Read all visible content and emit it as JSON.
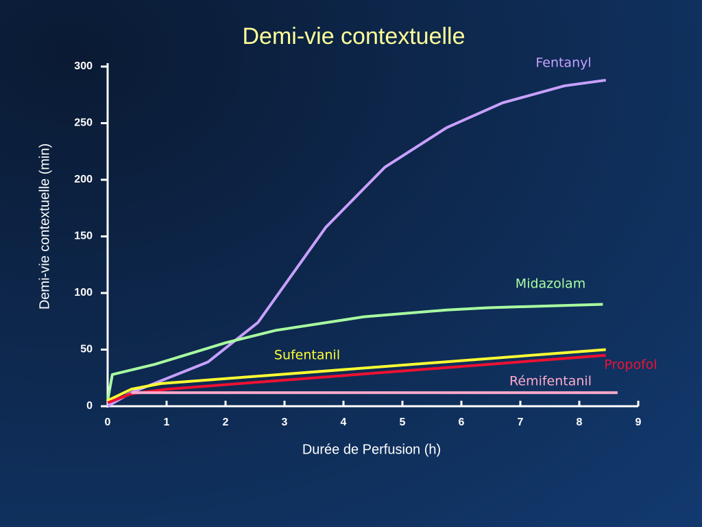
{
  "chart_data": {
    "type": "line",
    "title": "Demi-vie contextuelle",
    "x_label": "Durée de Perfusion (h)",
    "y_label": "Demi-vie contextuelle (min)",
    "xlim": [
      0,
      9
    ],
    "xticks": [
      0,
      1,
      2,
      3,
      4,
      5,
      6,
      7,
      8,
      9
    ],
    "ylim": [
      0,
      300
    ],
    "yticks": [
      0,
      50,
      100,
      150,
      200,
      250,
      300
    ],
    "series": [
      {
        "name": "Fentanyl",
        "color": "#c8a0ff",
        "x": [
          0,
          0.4,
          1.7,
          2.55,
          3.7,
          4.7,
          5.75,
          6.7,
          7.75,
          8.45
        ],
        "y": [
          0,
          12,
          39,
          74,
          158,
          211,
          246,
          268,
          283,
          288
        ]
      },
      {
        "name": "Midazolam",
        "color": "#a8ffa0",
        "x": [
          0,
          0.08,
          0.8,
          2,
          2.85,
          4.35,
          5.75,
          6.45,
          8.4
        ],
        "y": [
          5,
          28,
          37,
          56,
          67,
          79,
          85,
          87,
          90
        ]
      },
      {
        "name": "Sufentanil",
        "color": "#ffff33",
        "x": [
          0,
          0.4,
          0.9,
          8.45
        ],
        "y": [
          5,
          15,
          20,
          50
        ]
      },
      {
        "name": "Propofol",
        "color": "#ee1133",
        "x": [
          0,
          0.4,
          1,
          8.45
        ],
        "y": [
          3,
          11,
          15,
          45
        ]
      },
      {
        "name": "Rémifentanil",
        "color": "#ffaacc",
        "x": [
          0.4,
          8.65
        ],
        "y": [
          12,
          12
        ]
      }
    ]
  }
}
